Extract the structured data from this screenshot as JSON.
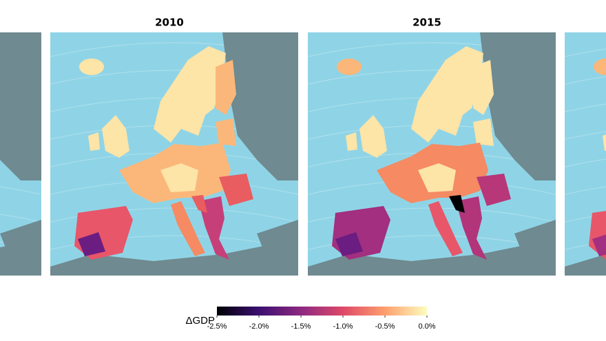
{
  "panels": [
    {
      "title": "2010"
    },
    {
      "title": "2015"
    }
  ],
  "legend": {
    "label": "ΔGDP",
    "lim": [
      -2.5,
      0
    ],
    "ticks": [
      {
        "value": -2.5,
        "label": "-2.5%"
      },
      {
        "value": -2.0,
        "label": "-2.0%"
      },
      {
        "value": -1.5,
        "label": "-1.5%"
      },
      {
        "value": -1.0,
        "label": "-1.0%"
      },
      {
        "value": -0.5,
        "label": "-0.5%"
      },
      {
        "value": 0.0,
        "label": "0.0%"
      }
    ],
    "colormap": [
      "#000004",
      "#3b0f70",
      "#8c2981",
      "#de4968",
      "#fe9f6d",
      "#fcfdbf"
    ]
  }
}
